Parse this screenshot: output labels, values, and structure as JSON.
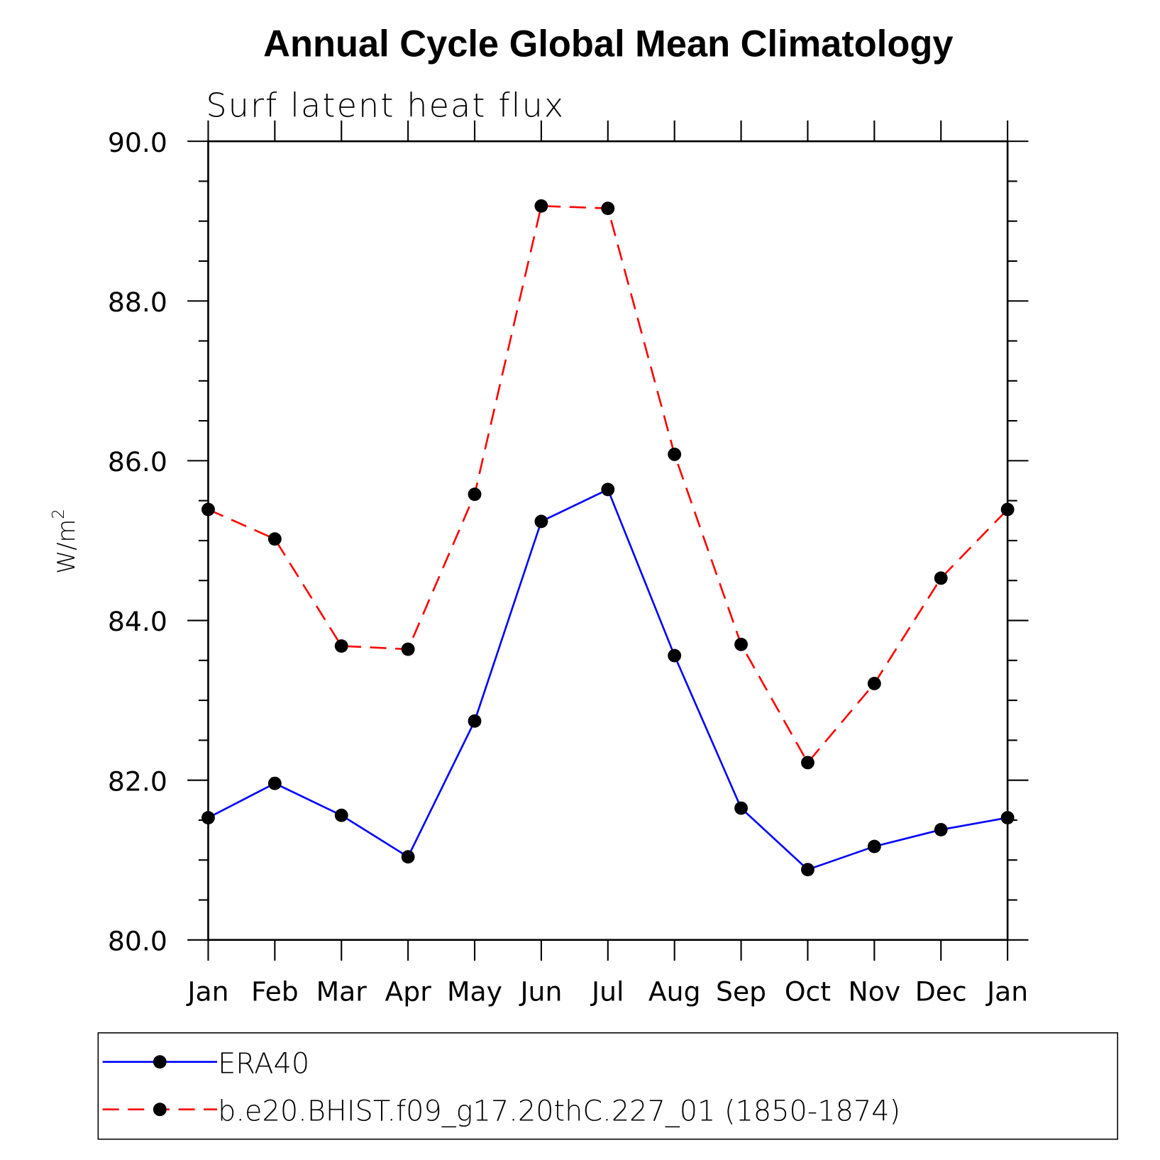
{
  "chart_data": {
    "type": "line",
    "title": "Annual Cycle Global Mean Climatology",
    "subtitle": "Surf latent heat flux",
    "ylabel": "W/m",
    "ylabel_superscript": "2",
    "xlabel": "",
    "categories": [
      "Jan",
      "Feb",
      "Mar",
      "Apr",
      "May",
      "Jun",
      "Jul",
      "Aug",
      "Sep",
      "Oct",
      "Nov",
      "Dec",
      "Jan"
    ],
    "ylim": [
      80,
      90
    ],
    "yticks": [
      "80.0",
      "82.0",
      "84.0",
      "86.0",
      "88.0",
      "90.0"
    ],
    "grid": false,
    "legend_placement": "bottom",
    "series": [
      {
        "name": "ERA40",
        "color": "#0000ff",
        "dash": "solid",
        "values": [
          81.53,
          81.96,
          81.56,
          81.04,
          82.74,
          85.24,
          85.64,
          83.56,
          81.65,
          80.88,
          81.17,
          81.38,
          81.53
        ]
      },
      {
        "name": "b.e20.BHIST.f09_g17.20thC.227_01 (1850-1874)",
        "color": "#ff0000",
        "dash": "dashed",
        "values": [
          85.39,
          85.02,
          83.68,
          83.64,
          85.58,
          89.19,
          89.16,
          86.08,
          83.7,
          82.22,
          83.21,
          84.53,
          85.39
        ]
      }
    ]
  }
}
